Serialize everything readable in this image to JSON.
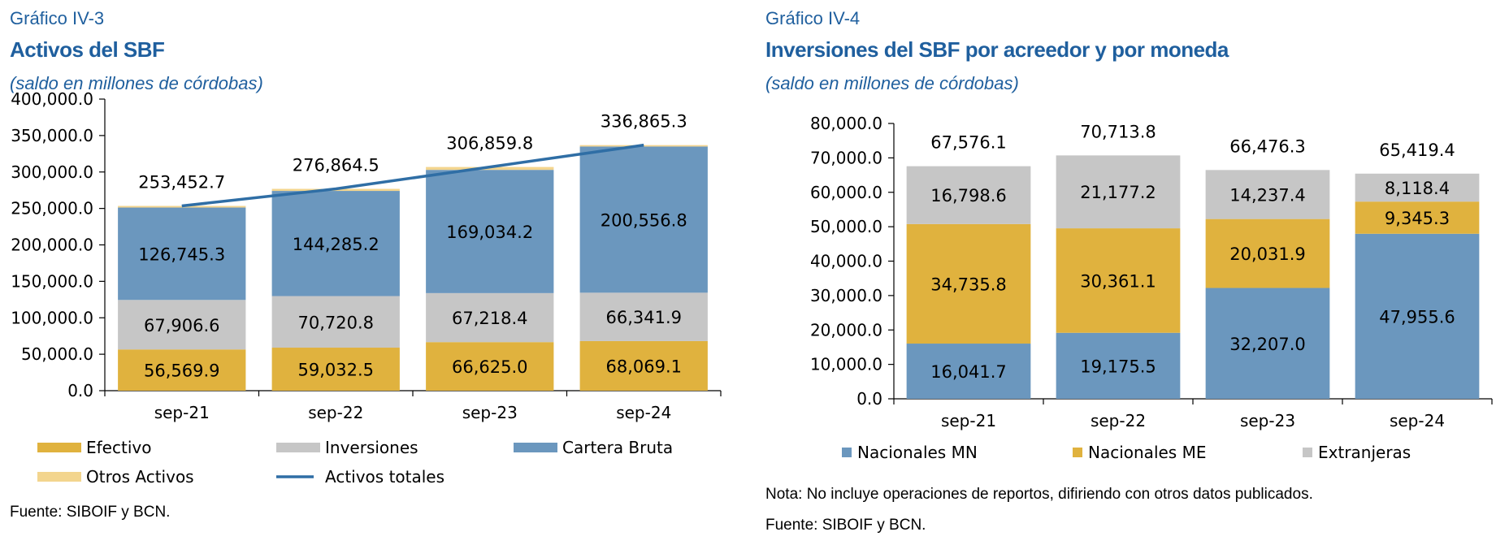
{
  "left": {
    "label": "Gráfico IV-3",
    "title": "Activos del SBF",
    "subtitle": "(saldo en millones de córdobas)",
    "source": "Fuente: SIBOIF y BCN."
  },
  "right": {
    "label": "Gráfico IV-4",
    "title": "Inversiones del SBF por acreedor y por moneda",
    "subtitle": "(saldo en millones de córdobas)",
    "note": "Nota: No incluye operaciones de reportos, difiriendo con otros datos publicados.",
    "source": "Fuente: SIBOIF y BCN."
  },
  "chart_data": [
    {
      "type": "bar",
      "stacked": true,
      "categories": [
        "sep-21",
        "sep-22",
        "sep-23",
        "sep-24"
      ],
      "ylim": [
        0,
        400000
      ],
      "yticks": [
        "0.0",
        "50,000.0",
        "100,000.0",
        "150,000.0",
        "200,000.0",
        "250,000.0",
        "300,000.0",
        "350,000.0",
        "400,000.0"
      ],
      "grid": false,
      "legend_position": "bottom",
      "series": [
        {
          "name": "Efectivo",
          "color": "#e0b23e",
          "values": [
            56569.9,
            59032.5,
            66625.0,
            68069.1
          ],
          "labels": [
            "56,569.9",
            "59,032.5",
            "66,625.0",
            "68,069.1"
          ]
        },
        {
          "name": "Inversiones",
          "color": "#c6c6c6",
          "values": [
            67906.6,
            70720.8,
            67218.4,
            66341.9
          ],
          "labels": [
            "67,906.6",
            "70,720.8",
            "67,218.4",
            "66,341.9"
          ]
        },
        {
          "name": "Cartera Bruta",
          "color": "#6b97be",
          "values": [
            126745.3,
            144285.2,
            169034.2,
            200556.8
          ],
          "labels": [
            "126,745.3",
            "144,285.2",
            "169,034.2",
            "200,556.8"
          ]
        },
        {
          "name": "Otros Activos",
          "color": "#f3d58e",
          "values": [
            2231.0,
            2826.0,
            3982.2,
            1898.0
          ]
        }
      ],
      "line": {
        "name": "Activos totales",
        "color": "#2f6ea5",
        "values": [
          253452.7,
          276864.5,
          306859.8,
          336865.3
        ],
        "labels": [
          "253,452.7",
          "276,864.5",
          "306,859.8",
          "336,865.3"
        ]
      }
    },
    {
      "type": "bar",
      "stacked": true,
      "categories": [
        "sep-21",
        "sep-22",
        "sep-23",
        "sep-24"
      ],
      "ylim": [
        0,
        80000
      ],
      "yticks": [
        "0.0",
        "10,000.0",
        "20,000.0",
        "30,000.0",
        "40,000.0",
        "50,000.0",
        "60,000.0",
        "70,000.0",
        "80,000.0"
      ],
      "grid": false,
      "legend_position": "bottom",
      "series": [
        {
          "name": "Nacionales MN",
          "color": "#6b97be",
          "values": [
            16041.7,
            19175.5,
            32207.0,
            47955.6
          ],
          "labels": [
            "16,041.7",
            "19,175.5",
            "32,207.0",
            "47,955.6"
          ]
        },
        {
          "name": "Nacionales ME",
          "color": "#e0b23e",
          "values": [
            34735.8,
            30361.1,
            20031.9,
            9345.3
          ],
          "labels": [
            "34,735.8",
            "30,361.1",
            "20,031.9",
            "9,345.3"
          ]
        },
        {
          "name": "Extranjeras",
          "color": "#c6c6c6",
          "values": [
            16798.6,
            21177.2,
            14237.4,
            8118.4
          ],
          "labels": [
            "16,798.6",
            "21,177.2",
            "14,237.4",
            "8,118.4"
          ]
        }
      ],
      "totals": {
        "values": [
          67576.1,
          70713.8,
          66476.3,
          65419.4
        ],
        "labels": [
          "67,576.1",
          "70,713.8",
          "66,476.3",
          "65,419.4"
        ]
      }
    }
  ]
}
